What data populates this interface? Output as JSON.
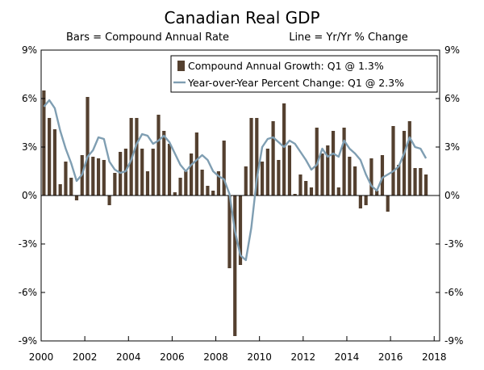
{
  "chart_data": {
    "type": "bar+line",
    "title": "Canadian Real GDP",
    "subtitle_left": "Bars = Compound Annual Rate",
    "subtitle_right": "Line = Yr/Yr % Change",
    "colors": {
      "bars": "#54402f",
      "line": "#7f9eb2"
    },
    "ylim": [
      -9,
      9
    ],
    "y_ticks": [
      -9,
      -6,
      -3,
      0,
      3,
      6,
      9
    ],
    "y_tick_labels": [
      "-9%",
      "-6%",
      "-3%",
      "0%",
      "3%",
      "6%",
      "9%"
    ],
    "x_ticks": [
      2000,
      2002,
      2004,
      2006,
      2008,
      2010,
      2012,
      2014,
      2016,
      2018
    ],
    "x_tick_labels": [
      "2000",
      "2002",
      "2004",
      "2006",
      "2008",
      "2010",
      "2012",
      "2014",
      "2016",
      "2018"
    ],
    "x_range": [
      2000,
      2018.25
    ],
    "legend": {
      "position": "top-right",
      "entries": [
        {
          "label": "Compound Annual Growth: Q1 @ 1.3%",
          "style": "bar"
        },
        {
          "label": "Year-over-Year Percent Change: Q1 @ 2.3%",
          "style": "line"
        }
      ]
    },
    "series": [
      {
        "name": "Compound Annual Growth",
        "kind": "bar",
        "start": "2000Q1",
        "values": [
          6.5,
          4.8,
          4.1,
          0.7,
          2.1,
          1.1,
          -0.3,
          2.5,
          6.1,
          2.4,
          2.3,
          2.2,
          -0.6,
          1.4,
          2.7,
          2.9,
          4.8,
          4.8,
          2.9,
          1.5,
          2.9,
          5.0,
          4.0,
          3.2,
          0.2,
          1.1,
          1.5,
          2.6,
          3.9,
          1.6,
          0.6,
          0.3,
          1.5,
          3.4,
          -4.5,
          -8.7,
          -4.3,
          1.8,
          4.8,
          4.8,
          2.1,
          2.9,
          4.6,
          2.2,
          5.7,
          3.1,
          0.1,
          1.3,
          0.9,
          0.5,
          4.2,
          2.6,
          3.1,
          4.0,
          0.5,
          4.2,
          2.4,
          1.8,
          -0.8,
          -0.6,
          2.3,
          0.3,
          2.5,
          -1.0,
          4.3,
          1.9,
          4.0,
          4.6,
          1.7,
          1.7,
          1.3
        ]
      },
      {
        "name": "Year-over-Year Percent Change",
        "kind": "line",
        "start": "2000Q1",
        "values": [
          5.5,
          5.9,
          5.4,
          4.0,
          2.9,
          2.0,
          0.9,
          1.3,
          2.4,
          2.8,
          3.6,
          3.5,
          2.1,
          1.6,
          1.4,
          1.5,
          2.2,
          3.2,
          3.8,
          3.7,
          3.2,
          3.4,
          3.7,
          3.3,
          2.6,
          1.9,
          1.5,
          1.9,
          2.2,
          2.5,
          2.2,
          1.5,
          1.2,
          1.0,
          0.1,
          -2.2,
          -3.7,
          -4.0,
          -2.0,
          1.0,
          3.0,
          3.5,
          3.6,
          3.3,
          3.0,
          3.4,
          3.2,
          2.7,
          2.2,
          1.6,
          1.9,
          2.9,
          2.4,
          2.6,
          2.4,
          3.4,
          2.9,
          2.6,
          2.2,
          1.3,
          0.6,
          0.3,
          1.1,
          1.3,
          1.5,
          1.8,
          2.6,
          3.6,
          3.0,
          2.9,
          2.3
        ]
      }
    ]
  }
}
